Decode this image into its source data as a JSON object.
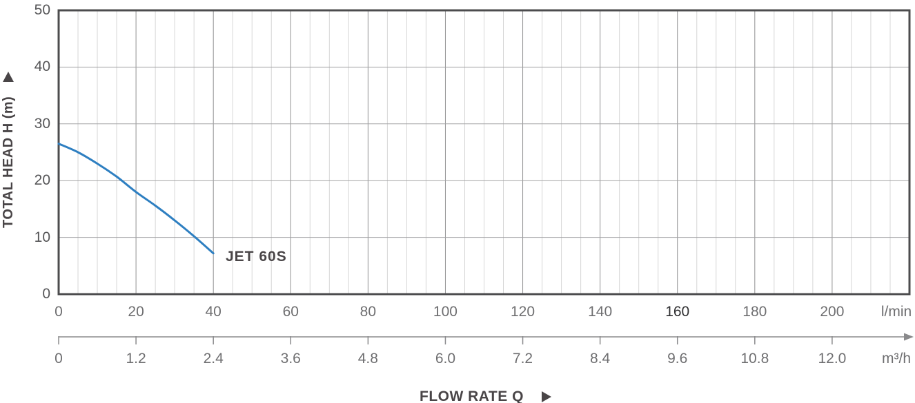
{
  "title_labels": {
    "y_axis_title": "TOTAL HEAD H (m)",
    "x_axis_title": "FLOW RATE Q",
    "curve_label": "JET 60S",
    "unit_primary": "l/min",
    "unit_secondary": "m³/h"
  },
  "chart_data": {
    "type": "line",
    "title": "",
    "xlabel": "FLOW RATE Q",
    "ylabel": "TOTAL HEAD H (m)",
    "xlim": [
      0,
      220
    ],
    "ylim": [
      0,
      50
    ],
    "x_minor_step": 5,
    "x_major_step": 20,
    "y_major_step": 10,
    "grid": true,
    "y_ticks": [
      50,
      40,
      30,
      20,
      10,
      0
    ],
    "x_axis_lmin": {
      "unit": "l/min",
      "ticks": [
        0,
        20,
        40,
        60,
        80,
        100,
        120,
        140,
        160,
        180,
        200
      ],
      "dark_tick": 160
    },
    "x_axis_m3h": {
      "unit": "m³/h",
      "tick_labels": [
        "0",
        "1.2",
        "2.4",
        "3.6",
        "4.8",
        "6.0",
        "7.2",
        "8.4",
        "9.6",
        "10.8",
        "12.0"
      ],
      "conversion_m3h_per_lmin": 0.06
    },
    "series": [
      {
        "name": "JET 60S",
        "color": "#2e7fc1",
        "x_unit": "l/min",
        "points": [
          [
            0,
            26.5
          ],
          [
            5,
            25.0
          ],
          [
            10,
            23.0
          ],
          [
            15,
            20.7
          ],
          [
            20,
            18.0
          ],
          [
            25,
            15.6
          ],
          [
            30,
            13.0
          ],
          [
            35,
            10.2
          ],
          [
            40,
            7.2
          ]
        ]
      }
    ],
    "legend": "inline-label-at-curve-end"
  },
  "colors": {
    "background": "#ffffff",
    "curve": "#2e7fc1",
    "plot_border": "#4c4c4e",
    "grid_minor": "#d6d6d6",
    "grid_major_v": "#909092",
    "grid_major_h": "#a2a2a4",
    "secondary_axis": "#8a8a8c",
    "tick_text": "#6e6e70",
    "tick_text_dark": "#2f2f31",
    "y_tick_text": "#565658",
    "title_text": "#494547"
  }
}
